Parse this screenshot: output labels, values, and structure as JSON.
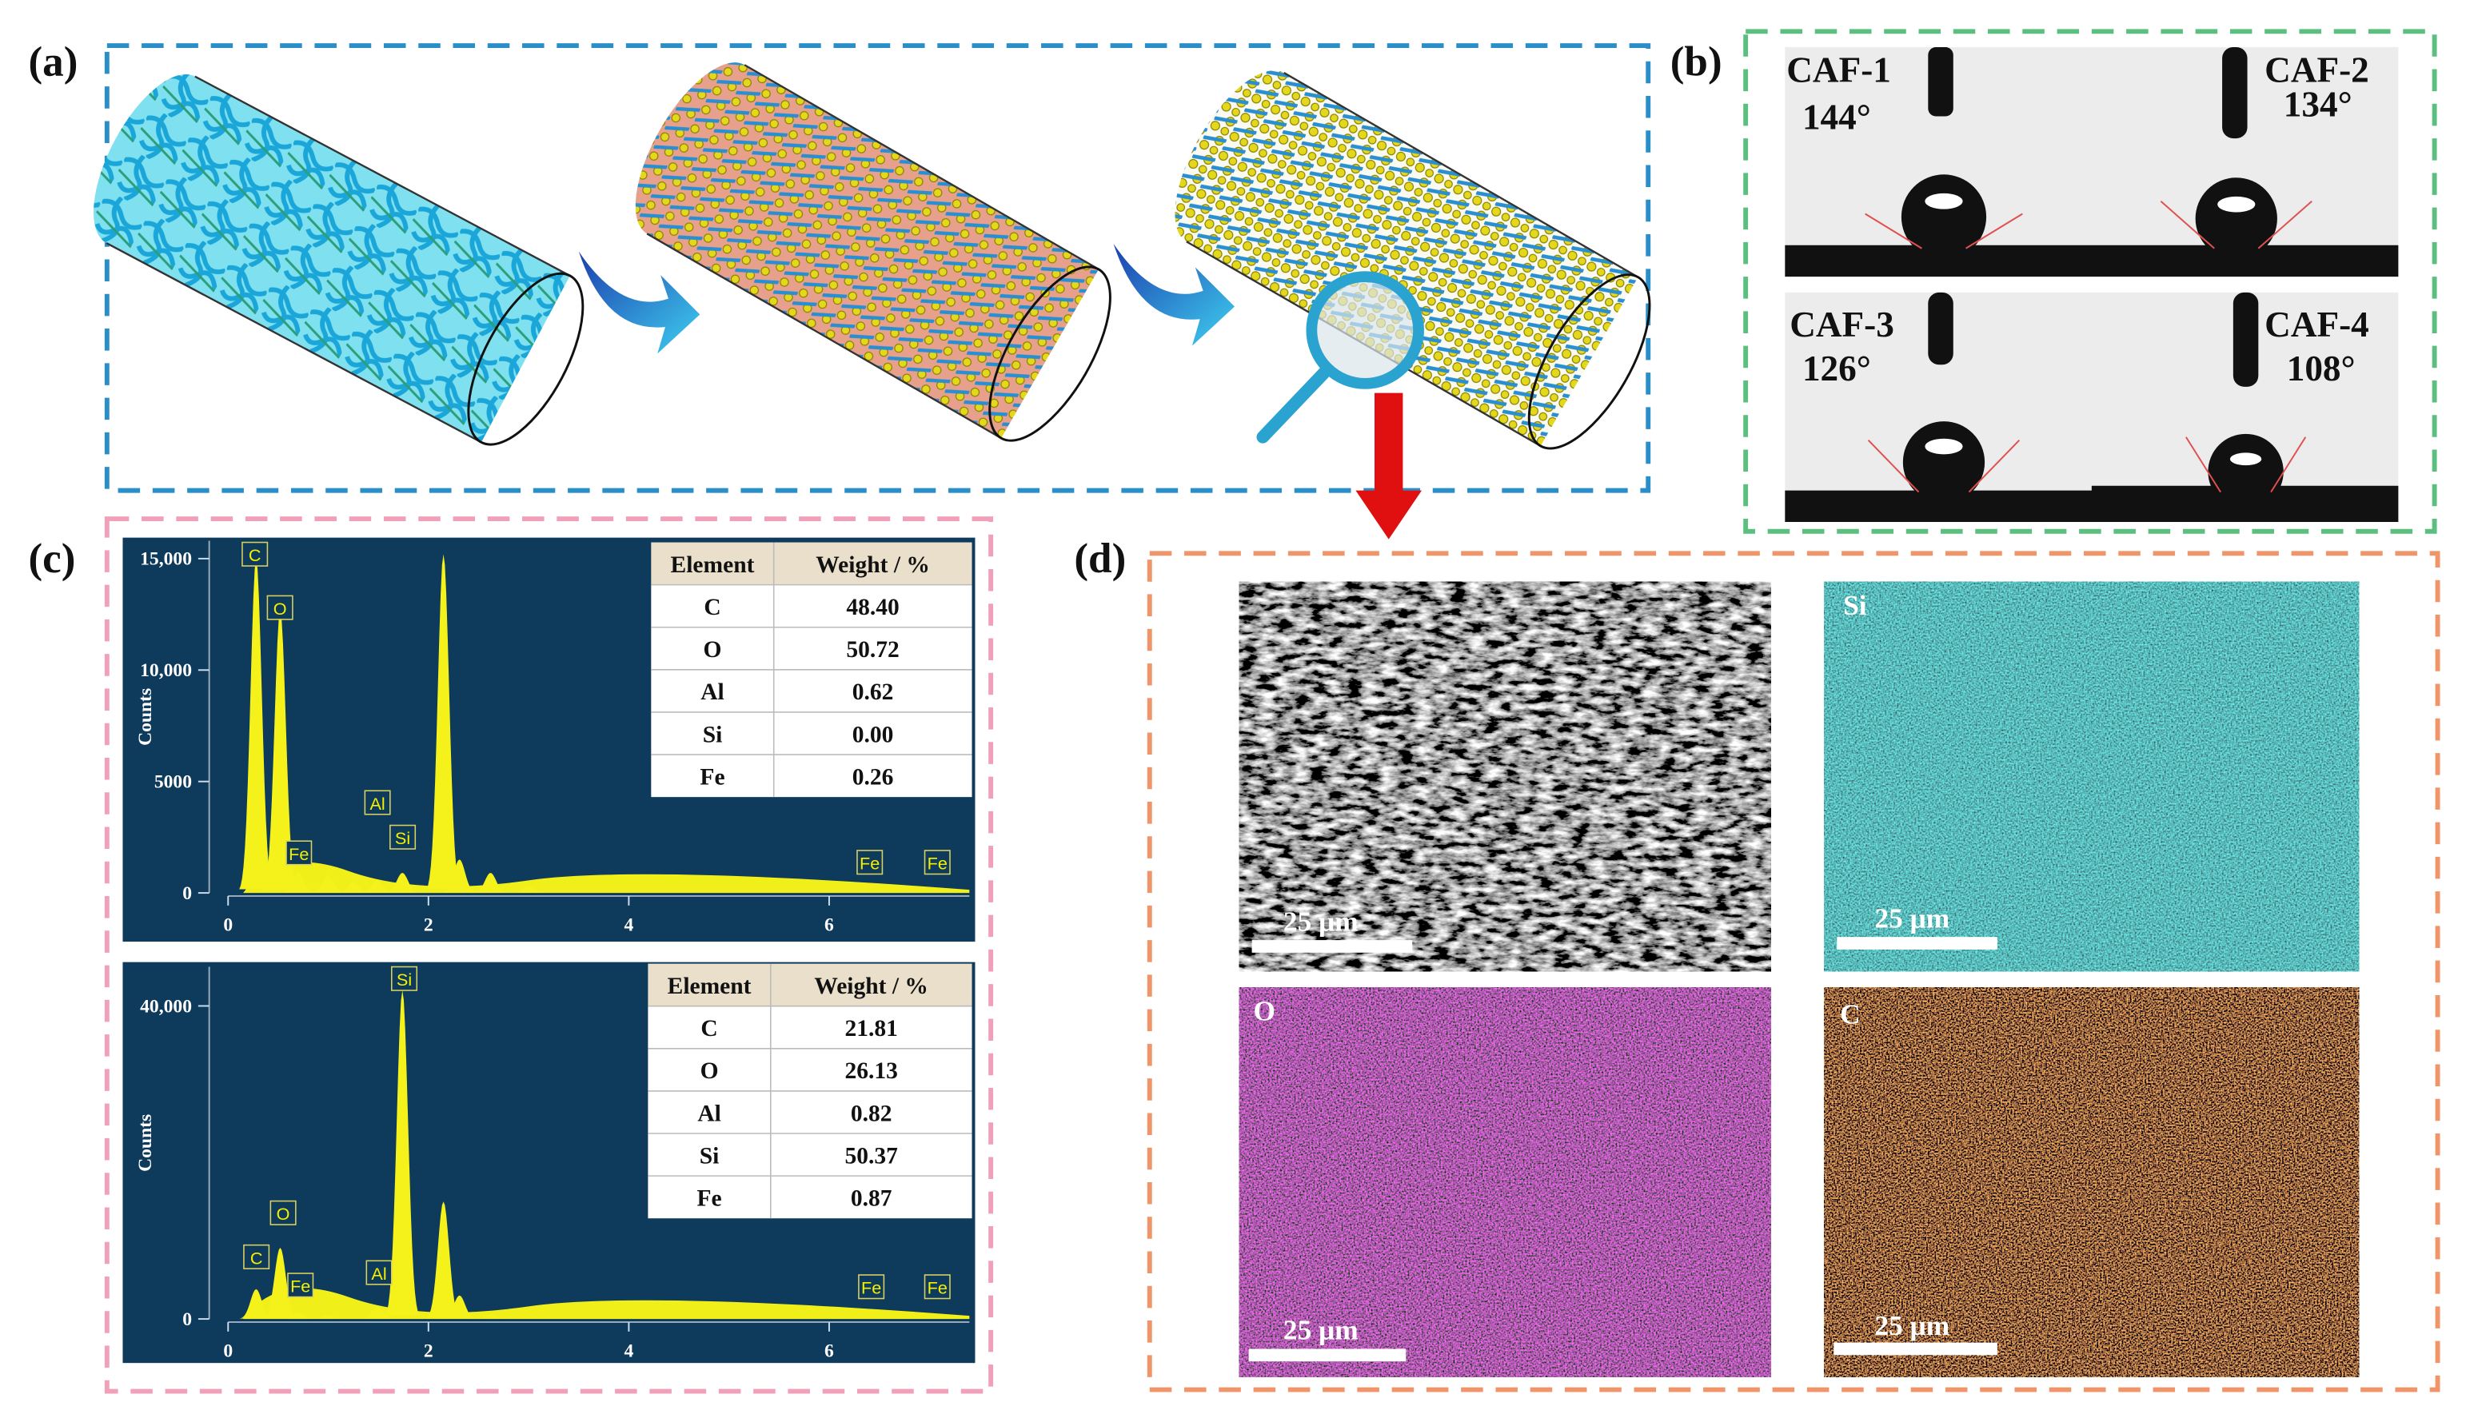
{
  "panel_a": {
    "label": "(a)"
  },
  "panel_b": {
    "label": "(b)",
    "samples": [
      {
        "name": "CAF-1",
        "angle": "144°"
      },
      {
        "name": "CAF-2",
        "angle": "134°"
      },
      {
        "name": "CAF-3",
        "angle": "126°"
      },
      {
        "name": "CAF-4",
        "angle": "108°"
      }
    ]
  },
  "panel_c": {
    "label": "(c)",
    "spectra": [
      {
        "ylabel": "Counts",
        "xlim": [
          0,
          7.4
        ],
        "ylim": [
          0,
          15800
        ],
        "xticks": [
          0,
          2,
          4,
          6
        ],
        "yticks": [
          0,
          5000,
          {
            "value": 10000,
            "label": "10,000"
          },
          {
            "value": 15000,
            "label": "15,000"
          }
        ],
        "peaks": {
          "x": [
            0.28,
            0.52,
            0.7,
            1.0,
            1.25,
            1.49,
            1.74,
            2.15,
            2.31,
            2.62,
            3.0
          ],
          "y": [
            15000,
            12700,
            900,
            800,
            500,
            600,
            900,
            15200,
            1500,
            900,
            300
          ]
        },
        "peak_labels": [
          "C",
          "O",
          "Fe",
          "Al",
          "Si",
          "Fe",
          "Fe"
        ],
        "table": {
          "header": [
            "Element",
            "Weight / %"
          ],
          "rows": [
            [
              "C",
              "48.40"
            ],
            [
              "O",
              "50.72"
            ],
            [
              "Al",
              "0.62"
            ],
            [
              "Si",
              "0.00"
            ],
            [
              "Fe",
              "0.26"
            ]
          ]
        }
      },
      {
        "ylabel": "Counts",
        "xlim": [
          0,
          7.4
        ],
        "ylim": [
          0,
          45000
        ],
        "xticks": [
          0,
          2,
          4,
          6
        ],
        "yticks": [
          0,
          {
            "value": 40000,
            "label": "40,000"
          }
        ],
        "peaks": {
          "x": [
            0.28,
            0.52,
            0.7,
            1.0,
            1.49,
            1.74,
            2.15,
            2.31,
            2.62
          ],
          "y": [
            3800,
            9100,
            800,
            500,
            1500,
            42000,
            15000,
            3000,
            600
          ]
        },
        "peak_labels": [
          "Si",
          "O",
          "C",
          "Fe",
          "Al",
          "Fe",
          "Fe"
        ],
        "table": {
          "header": [
            "Element",
            "Weight / %"
          ],
          "rows": [
            [
              "C",
              "21.81"
            ],
            [
              "O",
              "26.13"
            ],
            [
              "Al",
              "0.82"
            ],
            [
              "Si",
              "50.37"
            ],
            [
              "Fe",
              "0.87"
            ]
          ]
        }
      }
    ]
  },
  "panel_d": {
    "label": "(d)",
    "images": [
      {
        "scale": "25 μm"
      },
      {
        "element": "Si",
        "scale": "25 μm"
      },
      {
        "element": "O",
        "scale": "25 μm"
      },
      {
        "element": "C",
        "scale": "25 μm"
      }
    ]
  }
}
